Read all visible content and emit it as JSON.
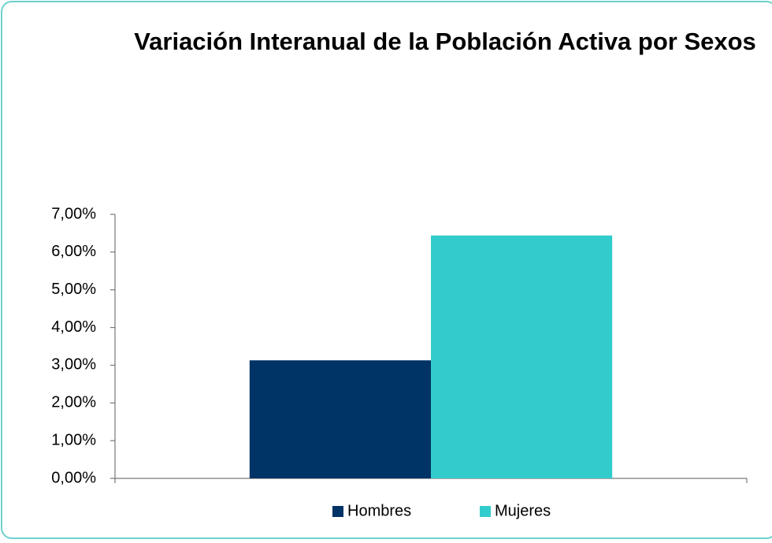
{
  "chart_data": {
    "type": "bar",
    "title": "Variación Interanual de la Población Activa por Sexos",
    "categories": [
      null
    ],
    "series": [
      {
        "name": "Hombres",
        "color": "#003366",
        "values": [
          3.13
        ]
      },
      {
        "name": "Mujeres",
        "color": "#33cccc",
        "values": [
          6.44
        ]
      }
    ],
    "ylim": [
      0,
      7
    ],
    "yticks": [
      {
        "value": 0,
        "label": "0,00%"
      },
      {
        "value": 1,
        "label": "1,00%"
      },
      {
        "value": 2,
        "label": "2,00%"
      },
      {
        "value": 3,
        "label": "3,00%"
      },
      {
        "value": 4,
        "label": "4,00%"
      },
      {
        "value": 5,
        "label": "5,00%"
      },
      {
        "value": 6,
        "label": "6,00%"
      },
      {
        "value": 7,
        "label": "7,00%"
      }
    ],
    "grid": false,
    "legend": "bottom"
  }
}
